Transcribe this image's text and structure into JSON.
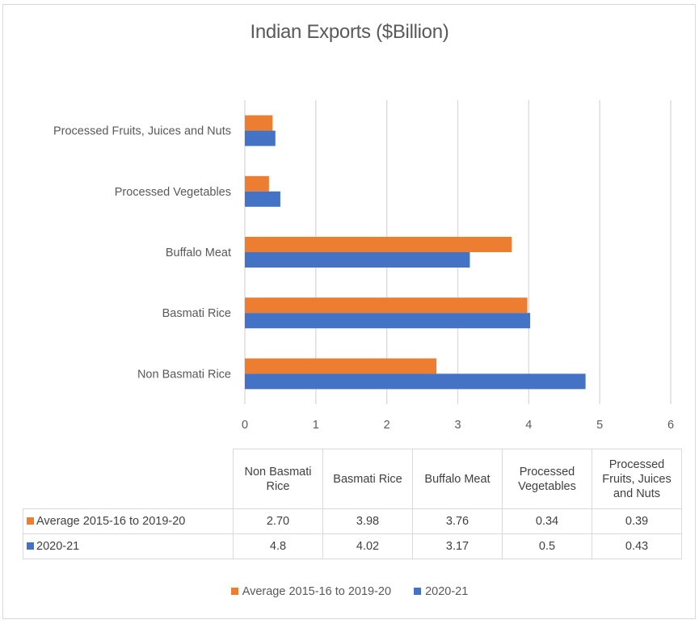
{
  "chart_data": {
    "type": "bar",
    "orientation": "horizontal",
    "title": "Indian Exports ($Billion)",
    "xlabel": "",
    "ylabel": "",
    "categories": [
      "Non Basmati Rice",
      "Basmati Rice",
      "Buffalo Meat",
      "Processed Vegetables",
      "Processed Fruits, Juices and Nuts"
    ],
    "table_headers": [
      "Non Basmati Rice",
      "Basmati Rice",
      "Buffalo Meat",
      "Processed Vegetables",
      "Processed Fruits, Juices and Nuts"
    ],
    "series": [
      {
        "name": "Average 2015-16 to 2019-20",
        "color": "#ED7D31",
        "values": [
          2.7,
          3.98,
          3.76,
          0.34,
          0.39
        ],
        "display": [
          "2.70",
          "3.98",
          "3.76",
          "0.34",
          "0.39"
        ]
      },
      {
        "name": "2020-21",
        "color": "#4472C4",
        "values": [
          4.8,
          4.02,
          3.17,
          0.5,
          0.43
        ],
        "display": [
          "4.8",
          "4.02",
          "3.17",
          "0.5",
          "0.43"
        ]
      }
    ],
    "xlim": [
      0,
      6
    ],
    "xticks": [
      "0",
      "1",
      "2",
      "3",
      "4",
      "5",
      "6"
    ],
    "grid": true,
    "legend_position": "bottom",
    "data_table": true
  }
}
